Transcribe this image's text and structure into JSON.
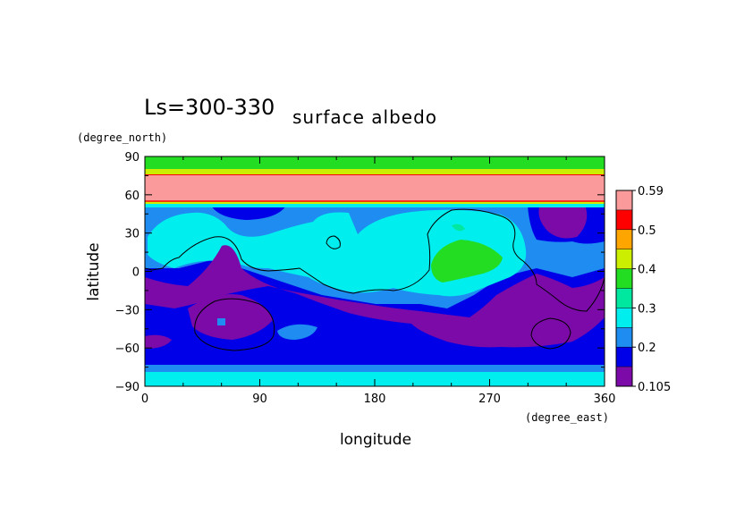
{
  "chart_data": {
    "type": "heatmap",
    "title": "Ls=300-330",
    "subtitle": "surface albedo",
    "xlabel": "longitude",
    "ylabel": "latitude",
    "x_unit": "(degree_east)",
    "y_unit": "(degree_north)",
    "xlim": [
      0,
      360
    ],
    "ylim": [
      -90,
      90
    ],
    "x_ticks": [
      "0",
      "90",
      "180",
      "270",
      "360"
    ],
    "y_ticks": [
      "90",
      "60",
      "30",
      "0",
      "-30",
      "-60",
      "-90"
    ],
    "colorbar": {
      "tick_labels": [
        "0.59",
        "0.5",
        "0.4",
        "0.3",
        "0.2",
        "0.105"
      ],
      "levels": [
        0.105,
        0.15,
        0.2,
        0.25,
        0.3,
        0.35,
        0.4,
        0.45,
        0.5,
        0.55,
        0.59
      ],
      "colors": [
        "#7b0aa8",
        "#0000e8",
        "#1e8cf0",
        "#00eeee",
        "#00e8a0",
        "#22dd22",
        "#ccee00",
        "#ffa500",
        "#ff0000",
        "#fa9a9a"
      ]
    },
    "regions": [
      {
        "name": "polar-cap",
        "level": 0.59,
        "lat_range": [
          55,
          78
        ]
      },
      {
        "name": "north-band-green",
        "level": 0.4,
        "lat_range": [
          82,
          88
        ]
      },
      {
        "name": "south-band-cyan",
        "level": 0.3,
        "lat_range": [
          -88,
          -78
        ]
      },
      {
        "name": "bright-northern-region",
        "level": 0.3,
        "lon_range": [
          20,
          330
        ],
        "lat_range": [
          -20,
          50
        ]
      },
      {
        "name": "dark-southern-belt",
        "level": 0.15,
        "lon_range": [
          0,
          360
        ],
        "lat_range": [
          -55,
          -10
        ]
      }
    ]
  }
}
